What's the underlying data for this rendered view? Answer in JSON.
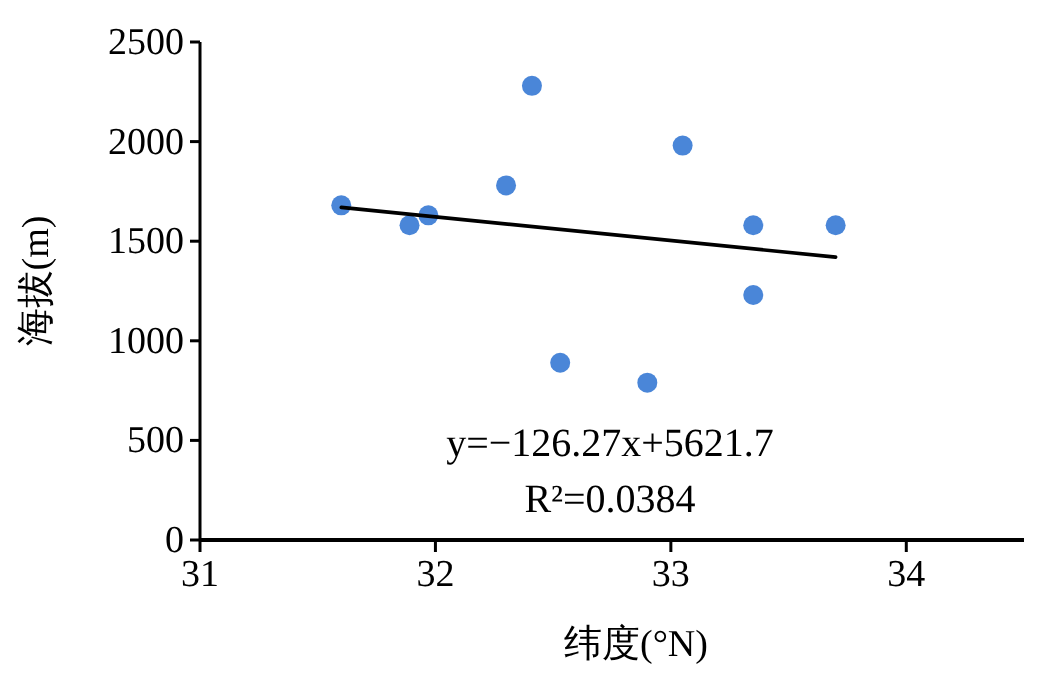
{
  "chart_data": {
    "type": "scatter",
    "xlabel": "纬度(°N)",
    "ylabel": "海拔(m)",
    "xlim": [
      31,
      34.5
    ],
    "xticks": [
      31,
      32,
      33,
      34
    ],
    "ylim": [
      0,
      2500
    ],
    "yticks": [
      0,
      500,
      1000,
      1500,
      2000,
      2500
    ],
    "grid": false,
    "marker": "circle",
    "series": [
      {
        "type": "scatter",
        "color": "#4a86d8",
        "x": [
          31.6,
          31.89,
          31.97,
          32.3,
          32.41,
          32.53,
          32.9,
          33.05,
          33.35,
          33.35,
          33.7
        ],
        "values": [
          1680,
          1580,
          1630,
          1780,
          2280,
          890,
          790,
          1980,
          1580,
          1230,
          1580
        ]
      },
      {
        "type": "line",
        "color": "#000000",
        "line_style": "solid",
        "marker": "none",
        "x": [
          31.6,
          33.7
        ],
        "values": [
          1670,
          1420
        ]
      }
    ],
    "annotations": [
      "y=−126.27x+5621.7",
      "R²=0.0384"
    ]
  }
}
